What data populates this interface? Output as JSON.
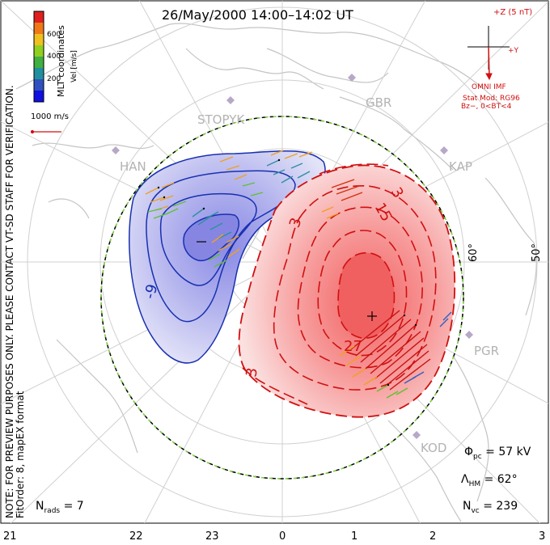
{
  "title": "26/May/2000 14:00–14:02 UT",
  "note_line1": "NOTE: FOR PREVIEW PURPOSES ONLY. PLEASE CONTACT VT-SD STAFF FOR VERIFICATION.",
  "note_line2": "FitOrder: 8, mapEX format",
  "coord_label": "MLT coordinates",
  "colorbar": {
    "title": "Vel [m/s]",
    "ticks": [
      "600",
      "400",
      "200"
    ],
    "colors": [
      "#e02020",
      "#f07818",
      "#f0c020",
      "#90d020",
      "#40b040",
      "#2090a0",
      "#3050c0",
      "#1010e0"
    ]
  },
  "scale_vector_label": "1000 m/s",
  "imf": {
    "z_label": "+Z (5 nT)",
    "y_label": "+Y",
    "source": "OMNI IMF",
    "stat_mod": "Stat Mod: RG96",
    "bz_condition": "Bz−, 0<BT<4"
  },
  "radars": [
    "STOPYK",
    "GBR",
    "HAN",
    "KAP",
    "PGR",
    "KOD"
  ],
  "latitude_labels": [
    "60°",
    "50°"
  ],
  "contour_labels": [
    "-9",
    "3",
    "15",
    "27",
    "3",
    "3"
  ],
  "extrema": {
    "min_symbol": "−",
    "max_symbol": "+"
  },
  "stats": {
    "phi_symbol": "Φ",
    "phi_sub": "pc",
    "phi_value": "= 57 kV",
    "lambda_symbol": "Λ",
    "lambda_sub": "HM",
    "lambda_value": "= 62°",
    "nvc_symbol": "N",
    "nvc_sub": "vc",
    "nvc_value": "= 239",
    "nrads_symbol": "N",
    "nrads_sub": "rads",
    "nrads_value": "= 7"
  },
  "mlt_ticks": [
    "21",
    "22",
    "23",
    "0",
    "1",
    "2",
    "3"
  ]
}
